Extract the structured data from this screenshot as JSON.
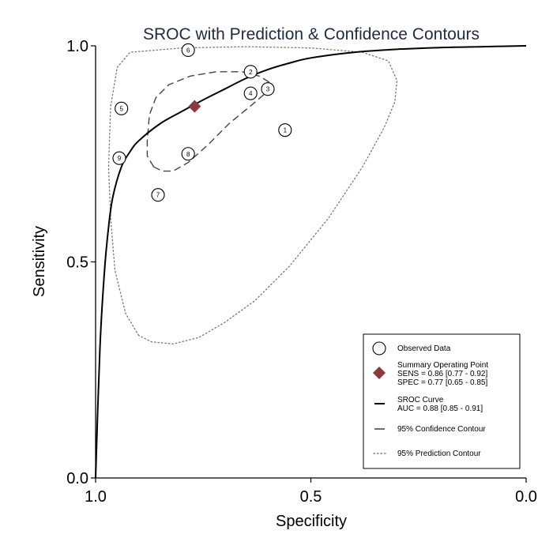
{
  "chart_data": {
    "type": "scatter",
    "title": "SROC with Prediction & Confidence Contours",
    "xlabel": "Specificity",
    "ylabel": "Sensitivity",
    "x_reversed": true,
    "xlim": [
      1.0,
      0.0
    ],
    "ylim": [
      0.0,
      1.0
    ],
    "x_ticks": [
      {
        "value": 1.0,
        "label": "1.0"
      },
      {
        "value": 0.5,
        "label": "0.5"
      },
      {
        "value": 0.0,
        "label": "0.0"
      }
    ],
    "y_ticks": [
      {
        "value": 0.0,
        "label": "0.0"
      },
      {
        "value": 0.5,
        "label": "0.5"
      },
      {
        "value": 1.0,
        "label": "1.0"
      }
    ],
    "grid": false,
    "legend_position": "bottom-right",
    "observed": [
      {
        "id": "1",
        "spec": 0.56,
        "sens": 0.805
      },
      {
        "id": "2",
        "spec": 0.64,
        "sens": 0.94
      },
      {
        "id": "3",
        "spec": 0.6,
        "sens": 0.9
      },
      {
        "id": "4",
        "spec": 0.64,
        "sens": 0.89
      },
      {
        "id": "5",
        "spec": 0.94,
        "sens": 0.855
      },
      {
        "id": "6",
        "spec": 0.785,
        "sens": 0.99
      },
      {
        "id": "7",
        "spec": 0.855,
        "sens": 0.655
      },
      {
        "id": "8",
        "spec": 0.785,
        "sens": 0.75
      },
      {
        "id": "9",
        "spec": 0.945,
        "sens": 0.74
      }
    ],
    "summary_point": {
      "spec": 0.77,
      "sens": 0.86,
      "color": "#8b3a3f"
    },
    "sroc_curve": {
      "points": [
        [
          1.0,
          0.0
        ],
        [
          0.99,
          0.3
        ],
        [
          0.98,
          0.47
        ],
        [
          0.97,
          0.58
        ],
        [
          0.96,
          0.65
        ],
        [
          0.94,
          0.72
        ],
        [
          0.92,
          0.755
        ],
        [
          0.9,
          0.78
        ],
        [
          0.85,
          0.82
        ],
        [
          0.8,
          0.848
        ],
        [
          0.75,
          0.875
        ],
        [
          0.7,
          0.9
        ],
        [
          0.65,
          0.925
        ],
        [
          0.6,
          0.945
        ],
        [
          0.55,
          0.96
        ],
        [
          0.5,
          0.972
        ],
        [
          0.4,
          0.985
        ],
        [
          0.3,
          0.992
        ],
        [
          0.2,
          0.996
        ],
        [
          0.1,
          0.998
        ],
        [
          0.0,
          1.0
        ]
      ]
    },
    "confidence_contour": [
      [
        0.865,
        0.72
      ],
      [
        0.88,
        0.745
      ],
      [
        0.88,
        0.78
      ],
      [
        0.875,
        0.84
      ],
      [
        0.86,
        0.88
      ],
      [
        0.83,
        0.91
      ],
      [
        0.78,
        0.93
      ],
      [
        0.72,
        0.94
      ],
      [
        0.66,
        0.94
      ],
      [
        0.62,
        0.93
      ],
      [
        0.595,
        0.915
      ],
      [
        0.6,
        0.895
      ],
      [
        0.635,
        0.865
      ],
      [
        0.69,
        0.82
      ],
      [
        0.74,
        0.77
      ],
      [
        0.785,
        0.73
      ],
      [
        0.82,
        0.71
      ],
      [
        0.845,
        0.71
      ],
      [
        0.865,
        0.72
      ]
    ],
    "prediction_contour": [
      [
        0.9,
        0.33
      ],
      [
        0.93,
        0.38
      ],
      [
        0.955,
        0.48
      ],
      [
        0.965,
        0.6
      ],
      [
        0.97,
        0.72
      ],
      [
        0.965,
        0.86
      ],
      [
        0.95,
        0.95
      ],
      [
        0.92,
        0.985
      ],
      [
        0.8,
        0.995
      ],
      [
        0.65,
        0.998
      ],
      [
        0.5,
        0.995
      ],
      [
        0.38,
        0.985
      ],
      [
        0.32,
        0.965
      ],
      [
        0.3,
        0.92
      ],
      [
        0.305,
        0.87
      ],
      [
        0.33,
        0.81
      ],
      [
        0.38,
        0.72
      ],
      [
        0.46,
        0.6
      ],
      [
        0.55,
        0.49
      ],
      [
        0.63,
        0.41
      ],
      [
        0.7,
        0.36
      ],
      [
        0.76,
        0.325
      ],
      [
        0.82,
        0.31
      ],
      [
        0.87,
        0.315
      ],
      [
        0.9,
        0.33
      ]
    ],
    "legend": [
      {
        "key": "observed",
        "lines": [
          "Observed Data"
        ]
      },
      {
        "key": "summary",
        "lines": [
          "Summary Operating Point",
          "SENS = 0.86 [0.77 - 0.92]",
          "SPEC = 0.77 [0.65 - 0.85]"
        ]
      },
      {
        "key": "sroc",
        "lines": [
          "SROC Curve",
          "AUC = 0.88 [0.85 - 0.91]"
        ]
      },
      {
        "key": "confidence",
        "lines": [
          "95% Confidence Contour"
        ]
      },
      {
        "key": "prediction",
        "lines": [
          "95% Prediction Contour"
        ]
      }
    ],
    "colors": {
      "text": "#000000",
      "title": "#1f2a44",
      "curve": "#000000",
      "contour": "#444444",
      "point_fill": "#ffffff"
    }
  }
}
